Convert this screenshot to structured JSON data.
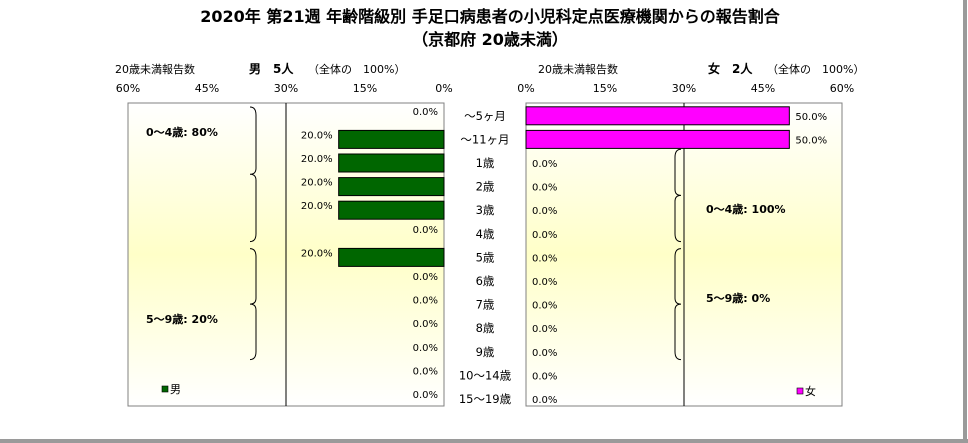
{
  "title": "2020年 第21週 年齢階級別 手足口病患者の小児科定点医療機関からの報告割合",
  "subtitle": "（京都府 20歳未満）",
  "chart_data": {
    "type": "bar",
    "categories": [
      "～5ヶ月",
      "～11ヶ月",
      "1歳",
      "2歳",
      "3歳",
      "4歳",
      "5歳",
      "6歳",
      "7歳",
      "8歳",
      "9歳",
      "10～14歳",
      "15～19歳"
    ],
    "x_ticks": [
      "60%",
      "45%",
      "30%",
      "15%",
      "0%",
      "0%",
      "15%",
      "30%",
      "45%",
      "60%"
    ],
    "xlim": [
      0,
      60
    ],
    "series": [
      {
        "name": "男",
        "color": "#006600",
        "header_left": "20歳未満報告数",
        "header_main": "男　5人",
        "header_paren": "（全体の　100%）",
        "values": [
          0,
          20,
          20,
          20,
          20,
          0,
          20,
          0,
          0,
          0,
          0,
          0,
          0
        ],
        "labels": [
          "0.0%",
          "20.0%",
          "20.0%",
          "20.0%",
          "20.0%",
          "0.0%",
          "20.0%",
          "0.0%",
          "0.0%",
          "0.0%",
          "0.0%",
          "0.0%",
          "0.0%"
        ],
        "annotations": [
          "0～4歳: 80%",
          "5～9歳: 20%"
        ]
      },
      {
        "name": "女",
        "color": "#ff00ff",
        "header_left": "20歳未満報告数",
        "header_main": "女　2人",
        "header_paren": "（全体の　100%）",
        "values": [
          50,
          50,
          0,
          0,
          0,
          0,
          0,
          0,
          0,
          0,
          0,
          0,
          0
        ],
        "labels": [
          "50.0%",
          "50.0%",
          "0.0%",
          "0.0%",
          "0.0%",
          "0.0%",
          "0.0%",
          "0.0%",
          "0.0%",
          "0.0%",
          "0.0%",
          "0.0%",
          "0.0%"
        ],
        "annotations": [
          "0～4歳: 100%",
          "5～9歳: 0%"
        ]
      }
    ]
  }
}
